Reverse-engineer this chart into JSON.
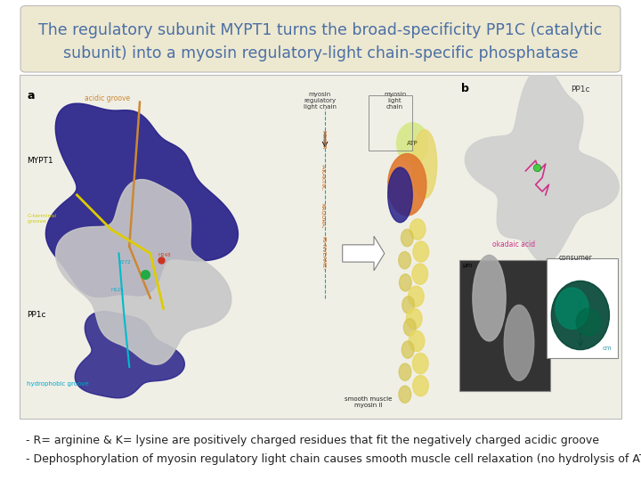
{
  "title_line1": "The regulatory subunit MYPT1 turns the broad-specificity PP1C (catalytic",
  "title_line2": "subunit) into a myosin regulatory-light chain-specific phosphatase",
  "title_bg": "#ede8d0",
  "title_color": "#4a6fa5",
  "title_fontsize": 12.5,
  "body_bg": "#ffffff",
  "bullet1": "- R= arginine & K= lysine are positively charged residues that fit the negatively charged acidic groove",
  "bullet2": "- Dephosphorylation of myosin regulatory light chain causes smooth muscle cell relaxation (no hydrolysis of ATP)",
  "bullet_color": "#222222",
  "bullet_fontsize": 9.0,
  "fig_width": 7.2,
  "fig_height": 5.4,
  "fig_dpi": 100,
  "border_color": "#bbbbbb",
  "panel_bg": "#f0efe6"
}
